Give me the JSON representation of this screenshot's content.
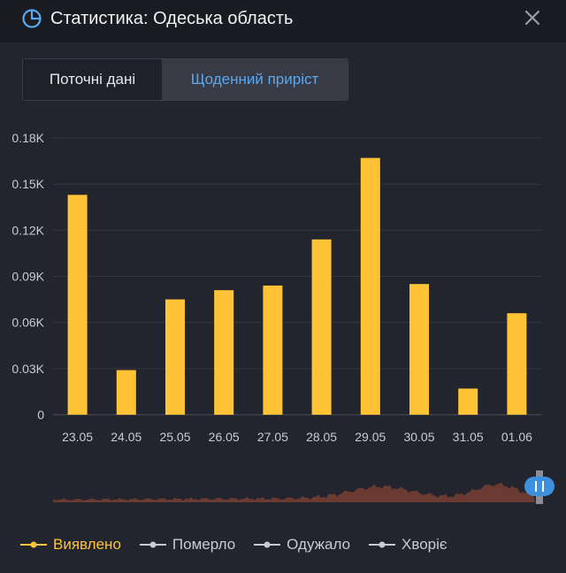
{
  "header": {
    "title": "Статистика: Одеська область",
    "icon": "pie-chart-icon",
    "close_icon": "close-icon"
  },
  "tabs": [
    {
      "label": "Поточні дані",
      "active": false
    },
    {
      "label": "Щоденний приріст",
      "active": true
    }
  ],
  "colors": {
    "accent": "#ffc335",
    "tab_active_text": "#5aa9f0",
    "navigator_fill": "#6b3a30",
    "navigator_handle": "#3d8fe0",
    "inactive_series": "#c9cbd1"
  },
  "chart_data": {
    "type": "bar",
    "categories": [
      "23.05",
      "24.05",
      "25.05",
      "26.05",
      "27.05",
      "28.05",
      "29.05",
      "30.05",
      "31.05",
      "01.06"
    ],
    "series": [
      {
        "name": "Виявлено",
        "values": [
          143,
          29,
          75,
          81,
          84,
          114,
          167,
          85,
          17,
          66
        ],
        "color": "#ffc335"
      }
    ],
    "yticks": [
      "0",
      "0.03K",
      "0.06K",
      "0.09K",
      "0.12K",
      "0.15K",
      "0.18K"
    ],
    "ylim": [
      0,
      180
    ],
    "grid": true,
    "xlabel": "",
    "ylabel": ""
  },
  "legend": [
    {
      "label": "Виявлено",
      "active": true
    },
    {
      "label": "Померло",
      "active": false
    },
    {
      "label": "Одужало",
      "active": false
    },
    {
      "label": "Хворіє",
      "active": false
    }
  ]
}
